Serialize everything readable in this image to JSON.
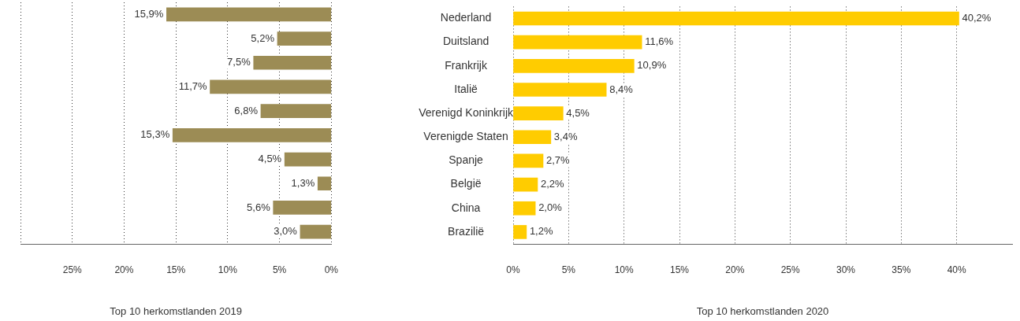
{
  "chart_data": [
    {
      "type": "bar",
      "orientation": "horizontal",
      "xlabel": "Top 10 herkomstlanden 2019",
      "categories": [
        null,
        null,
        null,
        null,
        null,
        null,
        null,
        null,
        null,
        null
      ],
      "values": [
        15.9,
        5.2,
        7.5,
        11.7,
        6.8,
        15.3,
        4.5,
        1.3,
        5.6,
        3.0
      ],
      "value_labels": [
        "15,9%",
        "5,2%",
        "7,5%",
        "11,7%",
        "6,8%",
        "15,3%",
        "4,5%",
        "1,3%",
        "5,6%",
        "3,0%"
      ],
      "color": "#9c8c55",
      "xlim": [
        30,
        0
      ],
      "xticks": [
        {
          "value": 30,
          "label": null
        },
        {
          "value": 25,
          "label": "25%"
        },
        {
          "value": 20,
          "label": "20%"
        },
        {
          "value": 15,
          "label": "15%"
        },
        {
          "value": 10,
          "label": "10%"
        },
        {
          "value": 5,
          "label": "5%"
        },
        {
          "value": 0,
          "label": "0%"
        }
      ],
      "grid": "x",
      "tick_labels": "x"
    },
    {
      "type": "bar",
      "orientation": "horizontal",
      "xlabel": "Top 10 herkomstlanden 2020",
      "categories": [
        "Nederland",
        "Duitsland",
        "Frankrijk",
        "Italië",
        "Verenigd Koninkrijk",
        "Verenigde Staten",
        "Spanje",
        "België",
        "China",
        "Brazilië"
      ],
      "values": [
        40.2,
        11.6,
        10.9,
        8.4,
        4.5,
        3.4,
        2.7,
        2.2,
        2.0,
        1.2
      ],
      "value_labels": [
        "40,2%",
        "11,6%",
        "10,9%",
        "8,4%",
        "4,5%",
        "3,4%",
        "2,7%",
        "2,2%",
        "2,0%",
        "1,2%"
      ],
      "color": "#ffcc00",
      "xlim": [
        0,
        45
      ],
      "xticks": [
        {
          "value": 0,
          "label": "0%"
        },
        {
          "value": 5,
          "label": "5%"
        },
        {
          "value": 10,
          "label": "10%"
        },
        {
          "value": 15,
          "label": "15%"
        },
        {
          "value": 20,
          "label": "20%"
        },
        {
          "value": 25,
          "label": "25%"
        },
        {
          "value": 30,
          "label": "30%"
        },
        {
          "value": 35,
          "label": "35%"
        },
        {
          "value": 40,
          "label": "40%"
        }
      ],
      "grid": "x"
    }
  ]
}
